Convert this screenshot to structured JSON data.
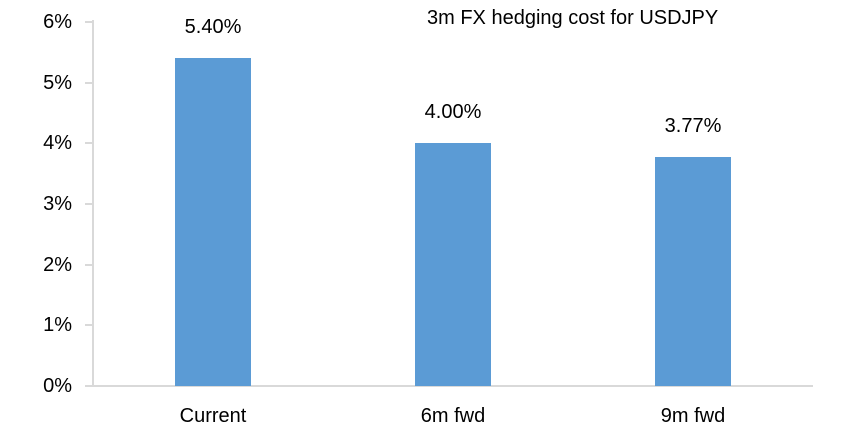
{
  "chart_data": {
    "type": "bar",
    "title": "3m FX hedging cost for USDJPY",
    "categories": [
      "Current",
      "6m fwd",
      "9m fwd"
    ],
    "values": [
      5.4,
      4.0,
      3.77
    ],
    "data_labels": [
      "5.40%",
      "4.00%",
      "3.77%"
    ],
    "ylim": [
      0,
      6
    ],
    "ytick_labels": [
      "0%",
      "1%",
      "2%",
      "3%",
      "4%",
      "5%",
      "6%"
    ],
    "grid": false,
    "legend": false,
    "bar_color": "#5B9BD5",
    "axis_color": "#D9D9D9",
    "text_color": "#000000"
  }
}
